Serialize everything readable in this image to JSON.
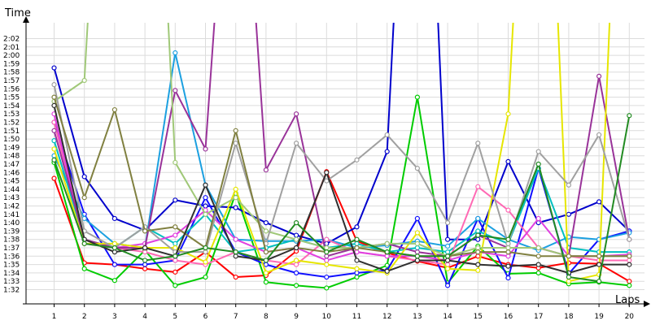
{
  "chart_data": {
    "type": "line",
    "xlabel": "Laps",
    "ylabel": "Time",
    "x": [
      1,
      2,
      3,
      4,
      5,
      6,
      7,
      8,
      9,
      10,
      11,
      12,
      13,
      14,
      15,
      16,
      17,
      18,
      19,
      20
    ],
    "xlim": [
      1,
      20
    ],
    "ylim_seconds": [
      91,
      125
    ],
    "y_tick_labels": [
      "1:32",
      "1:33",
      "1:34",
      "1:35",
      "1:36",
      "1:37",
      "1:38",
      "1:39",
      "1:40",
      "1:41",
      "1:42",
      "1:43",
      "1:44",
      "1:45",
      "1:46",
      "1:47",
      "1:48",
      "1:49",
      "1:50",
      "1:51",
      "1:52",
      "1:53",
      "1:54",
      "1:55",
      "1:56",
      "1:57",
      "1:58",
      "1:59",
      "2:00",
      "2:01",
      "2:02"
    ],
    "y_tick_values_seconds": [
      92,
      93,
      94,
      95,
      96,
      97,
      98,
      99,
      100,
      101,
      102,
      103,
      104,
      105,
      106,
      107,
      108,
      109,
      110,
      111,
      112,
      113,
      114,
      115,
      116,
      117,
      118,
      119,
      120,
      121,
      122
    ],
    "grid": true,
    "series": [
      {
        "color": "#ff0000",
        "values": [
          105.3,
          95.2,
          95.0,
          94.5,
          94.1,
          96.5,
          93.5,
          93.7,
          96.6,
          106.1,
          97.8,
          96.4,
          95.4,
          94.6,
          96.0,
          95.0,
          94.6,
          95.2,
          95.1,
          93.0
        ]
      },
      {
        "color": "#00cc00",
        "values": [
          107.2,
          94.5,
          93.1,
          96.7,
          92.5,
          93.5,
          103.5,
          92.9,
          92.5,
          92.2,
          93.5,
          94.9,
          115.0,
          92.8,
          97.2,
          93.9,
          94.0,
          92.7,
          92.9,
          92.5
        ]
      },
      {
        "color": "#0000cc",
        "values": [
          118.5,
          105.5,
          100.5,
          99.1,
          102.7,
          102.0,
          101.8,
          100.0,
          98.5,
          97.5,
          99.5,
          108.5,
          180.0,
          98.0,
          98.0,
          107.3,
          100.0,
          101.0,
          102.5,
          99.0
        ]
      },
      {
        "color": "#1010ff",
        "values": [
          112.0,
          101.0,
          95.0,
          95.0,
          95.5,
          103.0,
          96.5,
          95.0,
          94.0,
          93.5,
          94.0,
          94.3,
          100.5,
          92.5,
          100.5,
          93.4,
          106.5,
          93.9,
          98.0,
          99.0
        ]
      },
      {
        "color": "#1ca0e0",
        "values": [
          108.0,
          100.5,
          97.5,
          97.0,
          120.3,
          104.5,
          98.0,
          97.8,
          97.8,
          98.0,
          97.0,
          97.3,
          97.8,
          97.2,
          100.5,
          98.0,
          96.7,
          98.3,
          98.0,
          98.8
        ]
      },
      {
        "color": "#00bfbf",
        "values": [
          109.8,
          98.0,
          97.0,
          99.5,
          97.5,
          101.0,
          96.5,
          97.0,
          98.0,
          97.0,
          97.5,
          96.5,
          97.0,
          96.5,
          99.0,
          97.5,
          106.5,
          97.0,
          96.5,
          96.5
        ]
      },
      {
        "color": "#ff69b4",
        "values": [
          112.0,
          98.0,
          97.0,
          96.5,
          95.5,
          95.0,
          96.5,
          95.5,
          95.0,
          98.0,
          96.5,
          96.0,
          95.5,
          95.0,
          104.3,
          101.5,
          97.0,
          96.0,
          95.5,
          95.5
        ]
      },
      {
        "color": "#e040e0",
        "values": [
          113.0,
          97.5,
          97.0,
          97.5,
          98.5,
          101.5,
          98.0,
          96.5,
          97.0,
          95.5,
          96.5,
          96.0,
          96.0,
          95.5,
          96.5,
          96.0,
          100.5,
          96.0,
          96.0,
          96.2
        ]
      },
      {
        "color": "#993399",
        "values": [
          111.0,
          98.0,
          97.0,
          97.0,
          115.8,
          108.8,
          160.0,
          106.3,
          113.0,
          96.0,
          97.0,
          97.5,
          96.5,
          96.0,
          98.5,
          97.0,
          97.0,
          96.0,
          117.5,
          98.0
        ]
      },
      {
        "color": "#e6e600",
        "values": [
          108.8,
          97.5,
          97.5,
          97.0,
          97.0,
          95.3,
          104.0,
          94.0,
          95.5,
          95.0,
          94.5,
          94.0,
          98.8,
          94.5,
          94.3,
          113.0,
          180.0,
          93.0,
          93.8,
          180.0
        ]
      },
      {
        "color": "#a0c878",
        "values": [
          114.5,
          117.0,
          180.0,
          180.0,
          107.2,
          101.0,
          103.0,
          99.0,
          98.0,
          97.0,
          97.0,
          97.5,
          97.5,
          96.0,
          97.0,
          97.0,
          97.0,
          96.0,
          96.0,
          96.0
        ]
      },
      {
        "color": "#a0a0a0",
        "values": [
          116.5,
          99.0,
          97.0,
          99.5,
          96.5,
          96.5,
          109.5,
          97.5,
          109.5,
          105.0,
          107.5,
          110.5,
          106.5,
          100.0,
          109.5,
          97.5,
          108.5,
          104.5,
          110.5,
          98.0
        ]
      },
      {
        "color": "#808040",
        "values": [
          115.0,
          103.0,
          113.5,
          99.0,
          99.5,
          97.0,
          111.0,
          96.5,
          97.0,
          96.5,
          97.0,
          96.5,
          96.0,
          96.0,
          96.5,
          96.5,
          96.0,
          96.0,
          96.0,
          96.0
        ]
      },
      {
        "color": "#303030",
        "values": [
          114.0,
          98.0,
          96.5,
          97.0,
          96.0,
          104.5,
          96.0,
          95.5,
          97.0,
          106.0,
          95.5,
          94.2,
          95.5,
          95.5,
          95.0,
          94.8,
          95.0,
          94.0,
          95.0,
          95.0
        ]
      },
      {
        "color": "#228b22",
        "values": [
          107.5,
          97.5,
          97.0,
          95.5,
          96.0,
          97.0,
          96.5,
          95.5,
          100.0,
          96.5,
          98.0,
          96.5,
          96.0,
          96.0,
          98.5,
          98.0,
          107.0,
          93.5,
          93.0,
          112.8
        ]
      }
    ]
  }
}
